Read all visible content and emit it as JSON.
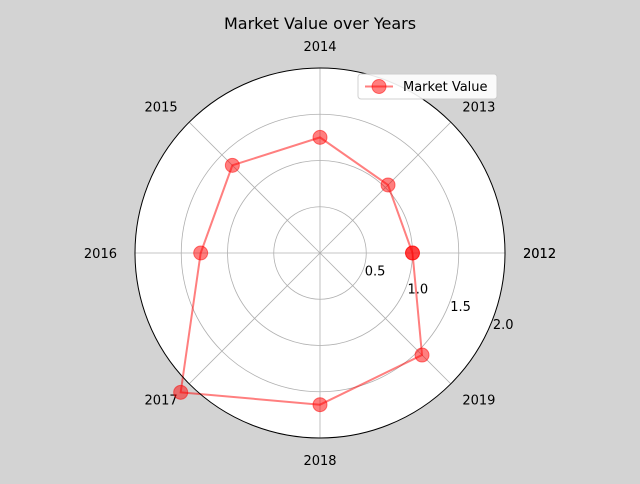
{
  "chart_data": {
    "type": "radar",
    "title": "Market Value over Years",
    "categories": [
      "2012",
      "2013",
      "2014",
      "2015",
      "2016",
      "2017",
      "2018",
      "2019",
      "2012"
    ],
    "radial_ticks": [
      "0.5",
      "1.0",
      "1.5",
      "2.0"
    ],
    "rlim": [
      0,
      2.0
    ],
    "grid": true,
    "legend_position": "top-right",
    "series": [
      {
        "name": "Market Value",
        "color": "#ff0000",
        "values": [
          1.0,
          1.04,
          1.25,
          1.34,
          1.29,
          2.13,
          1.64,
          1.56,
          1.0
        ]
      }
    ]
  }
}
